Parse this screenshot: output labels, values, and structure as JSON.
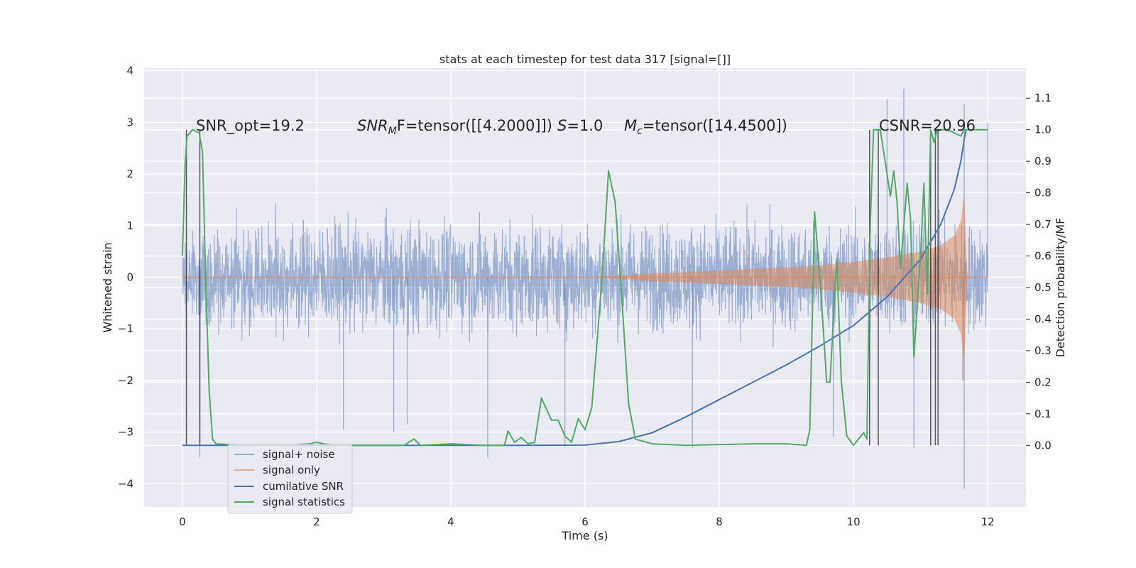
{
  "chart_data": {
    "type": "line",
    "title": "stats at each timestep for test data 317 [signal=[]]",
    "xlabel": "Time (s)",
    "ylabel": "Whitened strain",
    "ylabel_right": "Detection probability/MF",
    "xlim": [
      -0.57,
      12.57
    ],
    "ylim": [
      -4.45,
      4.05
    ],
    "ylim_right": [
      -0.195,
      1.195
    ],
    "x_ticks": [
      0,
      2,
      4,
      6,
      8,
      10,
      12
    ],
    "x_tick_labels": [
      "0",
      "2",
      "4",
      "6",
      "8",
      "10",
      "12"
    ],
    "y_ticks": [
      -4,
      -3,
      -2,
      -1,
      0,
      1,
      2,
      3,
      4
    ],
    "y_tick_labels": [
      "−4",
      "−3",
      "−2",
      "−1",
      "0",
      "1",
      "2",
      "3",
      "4"
    ],
    "y_right_ticks": [
      0.0,
      0.1,
      0.2,
      0.3,
      0.4,
      0.5,
      0.6,
      0.7,
      0.8,
      0.9,
      1.0,
      1.1
    ],
    "y_right_tick_labels": [
      "0.0",
      "0.1",
      "0.2",
      "0.3",
      "0.4",
      "0.5",
      "0.6",
      "0.7",
      "0.8",
      "0.9",
      "1.0",
      "1.1"
    ],
    "grid": true,
    "legend_position": "lower-left",
    "annotations": {
      "snr_opt": "SNR_opt=19.2",
      "snr_mf_main": "SNR",
      "snr_mf_sub": "M",
      "snr_mf_rest": "F=tensor([[4.2000]])",
      "s_italic": "S",
      "s_rest": "=1.0",
      "mc_main": "M",
      "mc_sub": "c",
      "mc_rest": "=tensor([14.4500])",
      "csnr": "CSNR=20.96"
    },
    "colors": {
      "signal_noise": "#4c72b0",
      "signal_only": "#dd8452",
      "cumulative_snr": "#4c72b0",
      "signal_statistics": "#55a868",
      "vertical_lines": "#262626",
      "background": "#eaeaf2",
      "grid": "#ffffff"
    },
    "series": [
      {
        "name": "signal+ noise",
        "axis": "left",
        "style": "dense noise, mostly within ±1.6 with spikes to ±3.5",
        "spikes": [
          [
            0.26,
            -3.5
          ],
          [
            4.55,
            -3.5
          ],
          [
            10.75,
            3.65
          ],
          [
            11.65,
            -4.1
          ],
          [
            11.65,
            3.35
          ],
          [
            10.5,
            3.45
          ],
          [
            9.7,
            -3.1
          ],
          [
            2.4,
            -2.95
          ],
          [
            3.15,
            -3.0
          ],
          [
            3.35,
            -2.85
          ],
          [
            5.7,
            -3.3
          ],
          [
            10.9,
            -3.3
          ],
          [
            7.6,
            -3.3
          ],
          [
            12.0,
            3.0
          ]
        ]
      },
      {
        "name": "signal only",
        "axis": "left",
        "style": "chirp envelope",
        "envelope": [
          [
            6.2,
            0.01
          ],
          [
            6.6,
            0.04
          ],
          [
            7.0,
            0.08
          ],
          [
            7.5,
            0.1
          ],
          [
            8.0,
            0.13
          ],
          [
            8.5,
            0.16
          ],
          [
            9.0,
            0.19
          ],
          [
            9.5,
            0.23
          ],
          [
            10.0,
            0.3
          ],
          [
            10.5,
            0.38
          ],
          [
            11.0,
            0.5
          ],
          [
            11.3,
            0.62
          ],
          [
            11.5,
            0.8
          ],
          [
            11.6,
            1.1
          ],
          [
            11.65,
            1.6
          ],
          [
            11.7,
            0.0
          ],
          [
            12.0,
            0.0
          ]
        ],
        "end_spike": [
          11.63,
          -2.0
        ]
      },
      {
        "name": "cumilative SNR",
        "axis": "right",
        "points": [
          [
            0.0,
            0.0
          ],
          [
            5.0,
            0.0
          ],
          [
            6.0,
            0.001
          ],
          [
            6.5,
            0.012
          ],
          [
            7.0,
            0.04
          ],
          [
            7.5,
            0.09
          ],
          [
            8.0,
            0.145
          ],
          [
            8.5,
            0.2
          ],
          [
            9.0,
            0.255
          ],
          [
            9.5,
            0.315
          ],
          [
            10.0,
            0.38
          ],
          [
            10.5,
            0.47
          ],
          [
            11.0,
            0.59
          ],
          [
            11.3,
            0.7
          ],
          [
            11.5,
            0.81
          ],
          [
            11.6,
            0.9
          ],
          [
            11.65,
            0.97
          ],
          [
            11.68,
            1.0
          ]
        ]
      },
      {
        "name": "signal statistics",
        "axis": "right",
        "points": [
          [
            0.0,
            0.6
          ],
          [
            0.04,
            0.89
          ],
          [
            0.07,
            0.98
          ],
          [
            0.15,
            1.0
          ],
          [
            0.25,
            0.99
          ],
          [
            0.3,
            0.93
          ],
          [
            0.35,
            0.5
          ],
          [
            0.4,
            0.17
          ],
          [
            0.45,
            0.02
          ],
          [
            0.5,
            0.005
          ],
          [
            1.0,
            0.0
          ],
          [
            1.5,
            0.0
          ],
          [
            1.9,
            0.005
          ],
          [
            2.0,
            0.01
          ],
          [
            2.1,
            0.005
          ],
          [
            2.3,
            0.0
          ],
          [
            3.3,
            0.0
          ],
          [
            3.45,
            0.02
          ],
          [
            3.55,
            0.0
          ],
          [
            4.0,
            0.005
          ],
          [
            4.5,
            0.0
          ],
          [
            4.8,
            0.0
          ],
          [
            4.85,
            0.045
          ],
          [
            4.95,
            0.01
          ],
          [
            5.05,
            0.025
          ],
          [
            5.15,
            0.005
          ],
          [
            5.25,
            0.01
          ],
          [
            5.35,
            0.15
          ],
          [
            5.5,
            0.08
          ],
          [
            5.6,
            0.08
          ],
          [
            5.7,
            0.03
          ],
          [
            5.8,
            0.01
          ],
          [
            5.9,
            0.085
          ],
          [
            6.0,
            0.05
          ],
          [
            6.1,
            0.12
          ],
          [
            6.25,
            0.52
          ],
          [
            6.35,
            0.87
          ],
          [
            6.45,
            0.77
          ],
          [
            6.55,
            0.46
          ],
          [
            6.65,
            0.13
          ],
          [
            6.75,
            0.02
          ],
          [
            7.0,
            0.005
          ],
          [
            7.5,
            0.0
          ],
          [
            8.5,
            0.005
          ],
          [
            9.0,
            0.005
          ],
          [
            9.3,
            0.0
          ],
          [
            9.35,
            0.05
          ],
          [
            9.42,
            0.74
          ],
          [
            9.52,
            0.47
          ],
          [
            9.6,
            0.2
          ],
          [
            9.65,
            0.2
          ],
          [
            9.75,
            0.59
          ],
          [
            9.82,
            0.2
          ],
          [
            9.9,
            0.03
          ],
          [
            10.0,
            0.0
          ],
          [
            10.15,
            0.04
          ],
          [
            10.2,
            0.02
          ],
          [
            10.25,
            0.7
          ],
          [
            10.3,
            1.0
          ],
          [
            10.4,
            1.0
          ],
          [
            10.5,
            0.86
          ],
          [
            10.55,
            0.79
          ],
          [
            10.6,
            0.87
          ],
          [
            10.65,
            0.77
          ],
          [
            10.7,
            0.56
          ],
          [
            10.8,
            0.83
          ],
          [
            10.85,
            0.72
          ],
          [
            10.9,
            0.28
          ],
          [
            11.0,
            0.6
          ],
          [
            11.05,
            0.83
          ],
          [
            11.1,
            0.48
          ],
          [
            11.15,
            1.0
          ],
          [
            11.2,
            0.96
          ],
          [
            11.25,
            1.0
          ],
          [
            11.4,
            1.0
          ],
          [
            11.6,
            0.98
          ],
          [
            11.65,
            1.0
          ],
          [
            12.0,
            1.0
          ]
        ]
      }
    ],
    "vertical_lines": [
      0.06,
      0.26,
      10.24,
      10.37,
      11.15,
      11.22,
      11.26
    ],
    "vertical_lines_range_right": [
      0.0,
      1.0
    ]
  }
}
